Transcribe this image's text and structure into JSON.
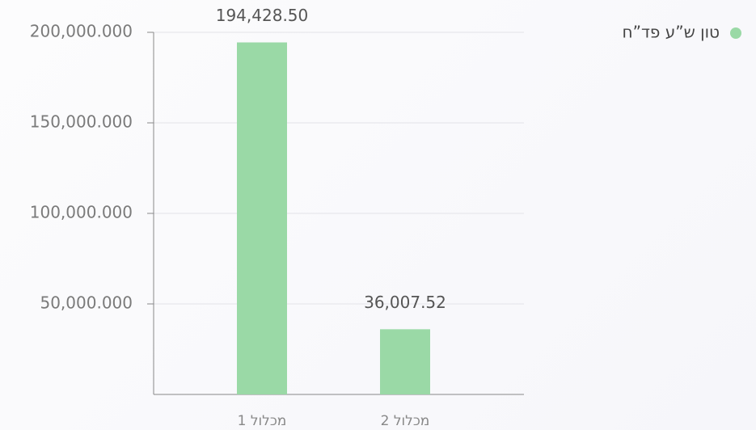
{
  "chart_data": {
    "type": "bar",
    "categories": [
      "מכלול 1",
      "מכלול 2"
    ],
    "series": [
      {
        "name": "טון ש”ע פד”ח",
        "color": "#9ad9a6",
        "values": [
          194428.5,
          36007.52
        ],
        "value_labels": [
          "194,428.50",
          "36,007.52"
        ]
      }
    ],
    "ylim": [
      0,
      200000
    ],
    "yticks": [
      {
        "value": 50000,
        "label": "50,000.000"
      },
      {
        "value": 100000,
        "label": "100,000.000"
      },
      {
        "value": 150000,
        "label": "150,000.000"
      },
      {
        "value": 200000,
        "label": "200,000.000"
      }
    ],
    "grid": true,
    "legend": "top-right"
  }
}
